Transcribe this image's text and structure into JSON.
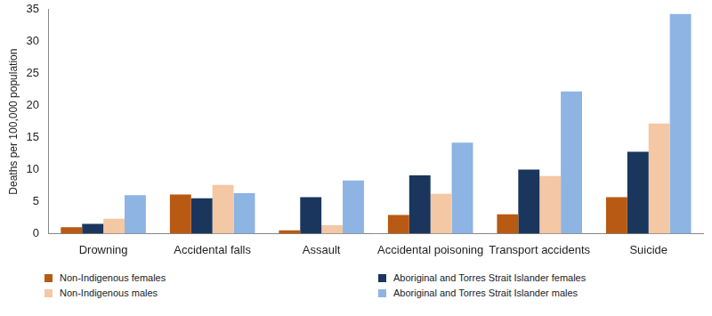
{
  "chart_data": {
    "type": "bar",
    "y_label": "Deaths per 100,000 population",
    "categories": [
      "Drowning",
      "Accidental falls",
      "Assault",
      "Accidental poisoning",
      "Transport accidents",
      "Suicide"
    ],
    "series": [
      {
        "name": "Non-Indigenous females",
        "color": "#b85a13",
        "values": [
          1.0,
          6.1,
          0.5,
          2.9,
          3.0,
          5.7
        ]
      },
      {
        "name": "Aboriginal and Torres Strait Islander females",
        "color": "#1a365d",
        "values": [
          1.5,
          5.5,
          5.7,
          9.1,
          10.0,
          12.8
        ]
      },
      {
        "name": "Non-Indigenous males",
        "color": "#f4c7a5",
        "values": [
          2.3,
          7.6,
          1.3,
          6.2,
          9.0,
          17.2
        ]
      },
      {
        "name": "Aboriginal and Torres Strait Islander males",
        "color": "#8db4e2",
        "values": [
          6.0,
          6.3,
          8.3,
          14.2,
          22.2,
          34.3
        ]
      }
    ],
    "ylim": [
      0,
      35
    ],
    "yticks": [
      0,
      5,
      10,
      15,
      20,
      25,
      30,
      35
    ],
    "grid": false,
    "legend": "bottom"
  }
}
